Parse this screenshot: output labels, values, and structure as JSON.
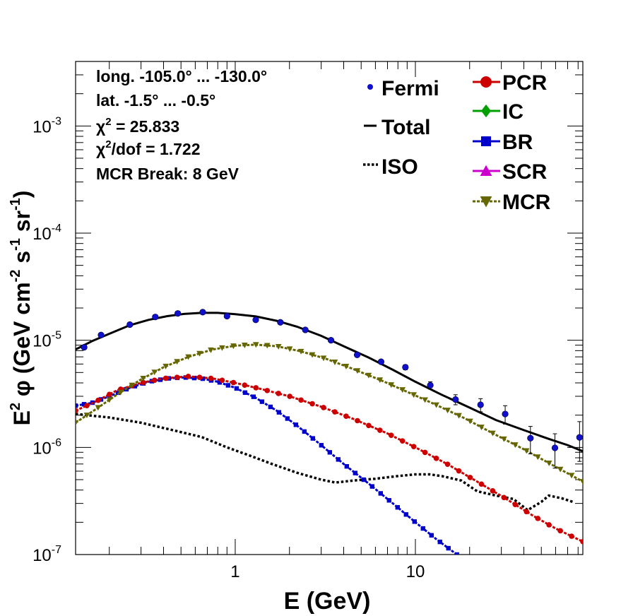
{
  "chart_data": {
    "type": "scatter",
    "xlog": true,
    "ylog": true,
    "xlim": [
      0.13,
      85
    ],
    "ylim": [
      1e-07,
      0.004
    ],
    "x_ticks": [
      {
        "v": 1,
        "label": "1"
      },
      {
        "v": 10,
        "label": "10"
      }
    ],
    "y_ticks": [
      {
        "v": 1e-07,
        "base": "10",
        "exp": "-7"
      },
      {
        "v": 1e-06,
        "base": "10",
        "exp": "-6"
      },
      {
        "v": 1e-05,
        "base": "10",
        "exp": "-5"
      },
      {
        "v": 0.0001,
        "base": "10",
        "exp": "-4"
      },
      {
        "v": 0.001,
        "base": "10",
        "exp": "-3"
      }
    ],
    "xlabel": "E (GeV)",
    "ylabel": {
      "p1": "E",
      "e1": "2",
      "p2": " φ (GeV cm",
      "e2": "-2",
      "p3": " s",
      "e3": "-1",
      "p4": " sr",
      "e4": "-1",
      "p5": ")"
    },
    "info": {
      "long": "long. -105.0° ... -130.0°",
      "lat": "lat. -1.5° ... -0.5°",
      "chi2_sym": "χ",
      "chi2_exp": "2",
      "chi2_val": " = 25.833",
      "chi2dof_sym": "χ",
      "chi2dof_exp": "2",
      "chi2dof_val": "/dof = 1.722",
      "break": "MCR Break:  8 GeV"
    },
    "legend_left": [
      {
        "label": "Fermi",
        "style": "dot"
      },
      {
        "label": "Total",
        "style": "line"
      },
      {
        "label": "ISO",
        "style": "dotted"
      }
    ],
    "legend_right": [
      {
        "label": "PCR",
        "color": "#cc0000",
        "marker": "circle"
      },
      {
        "label": "IC",
        "color": "#00a000",
        "marker": "diamond"
      },
      {
        "label": "BR",
        "color": "#0000cc",
        "marker": "square"
      },
      {
        "label": "SCR",
        "color": "#cc00cc",
        "marker": "triangle-up"
      },
      {
        "label": "MCR",
        "color": "#666600",
        "marker": "triangle-down"
      }
    ],
    "fermi": [
      {
        "x": 0.145,
        "y": 8.6e-06,
        "e": 0
      },
      {
        "x": 0.18,
        "y": 1.12e-05,
        "e": 0
      },
      {
        "x": 0.26,
        "y": 1.4e-05,
        "e": 0
      },
      {
        "x": 0.36,
        "y": 1.65e-05,
        "e": 0
      },
      {
        "x": 0.48,
        "y": 1.78e-05,
        "e": 0
      },
      {
        "x": 0.66,
        "y": 1.83e-05,
        "e": 0
      },
      {
        "x": 0.9,
        "y": 1.68e-05,
        "e": 0
      },
      {
        "x": 1.3,
        "y": 1.55e-05,
        "e": 0
      },
      {
        "x": 1.78,
        "y": 1.47e-05,
        "e": 0
      },
      {
        "x": 2.45,
        "y": 1.25e-05,
        "e": 0
      },
      {
        "x": 3.4,
        "y": 1e-05,
        "e": 0
      },
      {
        "x": 4.75,
        "y": 7.3e-06,
        "e": 0
      },
      {
        "x": 6.45,
        "y": 6.3e-06,
        "e": 0
      },
      {
        "x": 8.8,
        "y": 5.6e-06,
        "e": 3e-07
      },
      {
        "x": 12.1,
        "y": 3.8e-06,
        "e": 3e-07
      },
      {
        "x": 16.7,
        "y": 2.8e-06,
        "e": 3e-07
      },
      {
        "x": 23.0,
        "y": 2.5e-06,
        "e": 3.5e-07
      },
      {
        "x": 31.5,
        "y": 2.05e-06,
        "e": 4e-07
      },
      {
        "x": 43.5,
        "y": 1.22e-06,
        "e": 3.5e-07
      },
      {
        "x": 59.5,
        "y": 9.9e-07,
        "e": 3.5e-07
      },
      {
        "x": 81.5,
        "y": 1.24e-06,
        "e": 5e-07
      }
    ],
    "series": [
      {
        "name": "Total",
        "color": "#000000",
        "style": "solid",
        "points": [
          [
            0.13,
            8.2e-06
          ],
          [
            0.16,
            9.8e-06
          ],
          [
            0.2,
            1.15e-05
          ],
          [
            0.26,
            1.38e-05
          ],
          [
            0.33,
            1.55e-05
          ],
          [
            0.42,
            1.68e-05
          ],
          [
            0.52,
            1.76e-05
          ],
          [
            0.65,
            1.8e-05
          ],
          [
            0.8,
            1.8e-05
          ],
          [
            1.0,
            1.75e-05
          ],
          [
            1.3,
            1.67e-05
          ],
          [
            1.7,
            1.52e-05
          ],
          [
            2.2,
            1.34e-05
          ],
          [
            3.0,
            1.1e-05
          ],
          [
            4.0,
            8.8e-06
          ],
          [
            5.5,
            6.9e-06
          ],
          [
            7.5,
            5.3e-06
          ],
          [
            10,
            4.1e-06
          ],
          [
            14,
            3.1e-06
          ],
          [
            20,
            2.35e-06
          ],
          [
            28,
            1.8e-06
          ],
          [
            40,
            1.45e-06
          ],
          [
            55,
            1.2e-06
          ],
          [
            70,
            1.05e-06
          ],
          [
            85,
            9.2e-07
          ]
        ]
      },
      {
        "name": "ISO",
        "color": "#000000",
        "style": "dotted",
        "points": [
          [
            0.13,
            2.05e-06
          ],
          [
            0.2,
            1.9e-06
          ],
          [
            0.3,
            1.7e-06
          ],
          [
            0.45,
            1.45e-06
          ],
          [
            0.65,
            1.25e-06
          ],
          [
            0.9,
            1e-06
          ],
          [
            1.2,
            8.4e-07
          ],
          [
            1.6,
            7e-07
          ],
          [
            2.2,
            5.8e-07
          ],
          [
            3.0,
            5e-07
          ],
          [
            3.6,
            4.7e-07
          ],
          [
            4.5,
            4.9e-07
          ],
          [
            6,
            5.1e-07
          ],
          [
            8,
            5.4e-07
          ],
          [
            10,
            5.6e-07
          ],
          [
            12,
            5.6e-07
          ],
          [
            14,
            5.4e-07
          ],
          [
            18,
            4.9e-07
          ],
          [
            22,
            3.9e-07
          ],
          [
            28,
            3.55e-07
          ],
          [
            35,
            3.3e-07
          ],
          [
            42,
            2.6e-07
          ],
          [
            50,
            3.1e-07
          ],
          [
            55,
            3.55e-07
          ],
          [
            65,
            3.35e-07
          ],
          [
            75,
            3.1e-07
          ]
        ]
      },
      {
        "name": "PCR",
        "color": "#cc0000",
        "marker": "circle",
        "points": [
          [
            0.13,
            2.2e-06
          ],
          [
            0.17,
            2.7e-06
          ],
          [
            0.22,
            3.4e-06
          ],
          [
            0.3,
            4e-06
          ],
          [
            0.4,
            4.4e-06
          ],
          [
            0.55,
            4.6e-06
          ],
          [
            0.75,
            4.4e-06
          ],
          [
            1.0,
            4e-06
          ],
          [
            1.4,
            3.5e-06
          ],
          [
            2.0,
            3e-06
          ],
          [
            3.0,
            2.4e-06
          ],
          [
            4.5,
            1.85e-06
          ],
          [
            7,
            1.35e-06
          ],
          [
            10,
            1e-06
          ],
          [
            15,
            7e-07
          ],
          [
            22,
            4.8e-07
          ],
          [
            32,
            3.3e-07
          ],
          [
            45,
            2.3e-07
          ],
          [
            60,
            1.75e-07
          ],
          [
            85,
            1.32e-07
          ]
        ]
      },
      {
        "name": "BR",
        "color": "#0000cc",
        "marker": "square",
        "points": [
          [
            0.13,
            2.45e-06
          ],
          [
            0.16,
            2.6e-06
          ],
          [
            0.2,
            3e-06
          ],
          [
            0.26,
            3.6e-06
          ],
          [
            0.33,
            4.1e-06
          ],
          [
            0.42,
            4.4e-06
          ],
          [
            0.52,
            4.5e-06
          ],
          [
            0.65,
            4.4e-06
          ],
          [
            0.8,
            4.1e-06
          ],
          [
            1.0,
            3.6e-06
          ],
          [
            1.3,
            2.9e-06
          ],
          [
            1.7,
            2.2e-06
          ],
          [
            2.2,
            1.6e-06
          ],
          [
            3.0,
            1.05e-06
          ],
          [
            4.0,
            7e-07
          ],
          [
            5.5,
            4.6e-07
          ],
          [
            7.5,
            3e-07
          ],
          [
            10,
            2e-07
          ],
          [
            13,
            1.4e-07
          ],
          [
            17,
            1e-07
          ]
        ]
      },
      {
        "name": "MCR",
        "color": "#666600",
        "marker": "triangle-down",
        "points": [
          [
            0.13,
            1.7e-06
          ],
          [
            0.17,
            2.3e-06
          ],
          [
            0.22,
            3.1e-06
          ],
          [
            0.3,
            4.3e-06
          ],
          [
            0.4,
            5.6e-06
          ],
          [
            0.55,
            7e-06
          ],
          [
            0.75,
            8.2e-06
          ],
          [
            1.0,
            8.9e-06
          ],
          [
            1.3,
            9.1e-06
          ],
          [
            1.7,
            8.8e-06
          ],
          [
            2.3,
            7.9e-06
          ],
          [
            3.2,
            6.7e-06
          ],
          [
            4.5,
            5.4e-06
          ],
          [
            6.5,
            4.2e-06
          ],
          [
            9,
            3.3e-06
          ],
          [
            13,
            2.5e-06
          ],
          [
            19,
            1.85e-06
          ],
          [
            27,
            1.35e-06
          ],
          [
            40,
            9.6e-07
          ],
          [
            60,
            6.6e-07
          ],
          [
            85,
            4.8e-07
          ]
        ]
      }
    ]
  }
}
